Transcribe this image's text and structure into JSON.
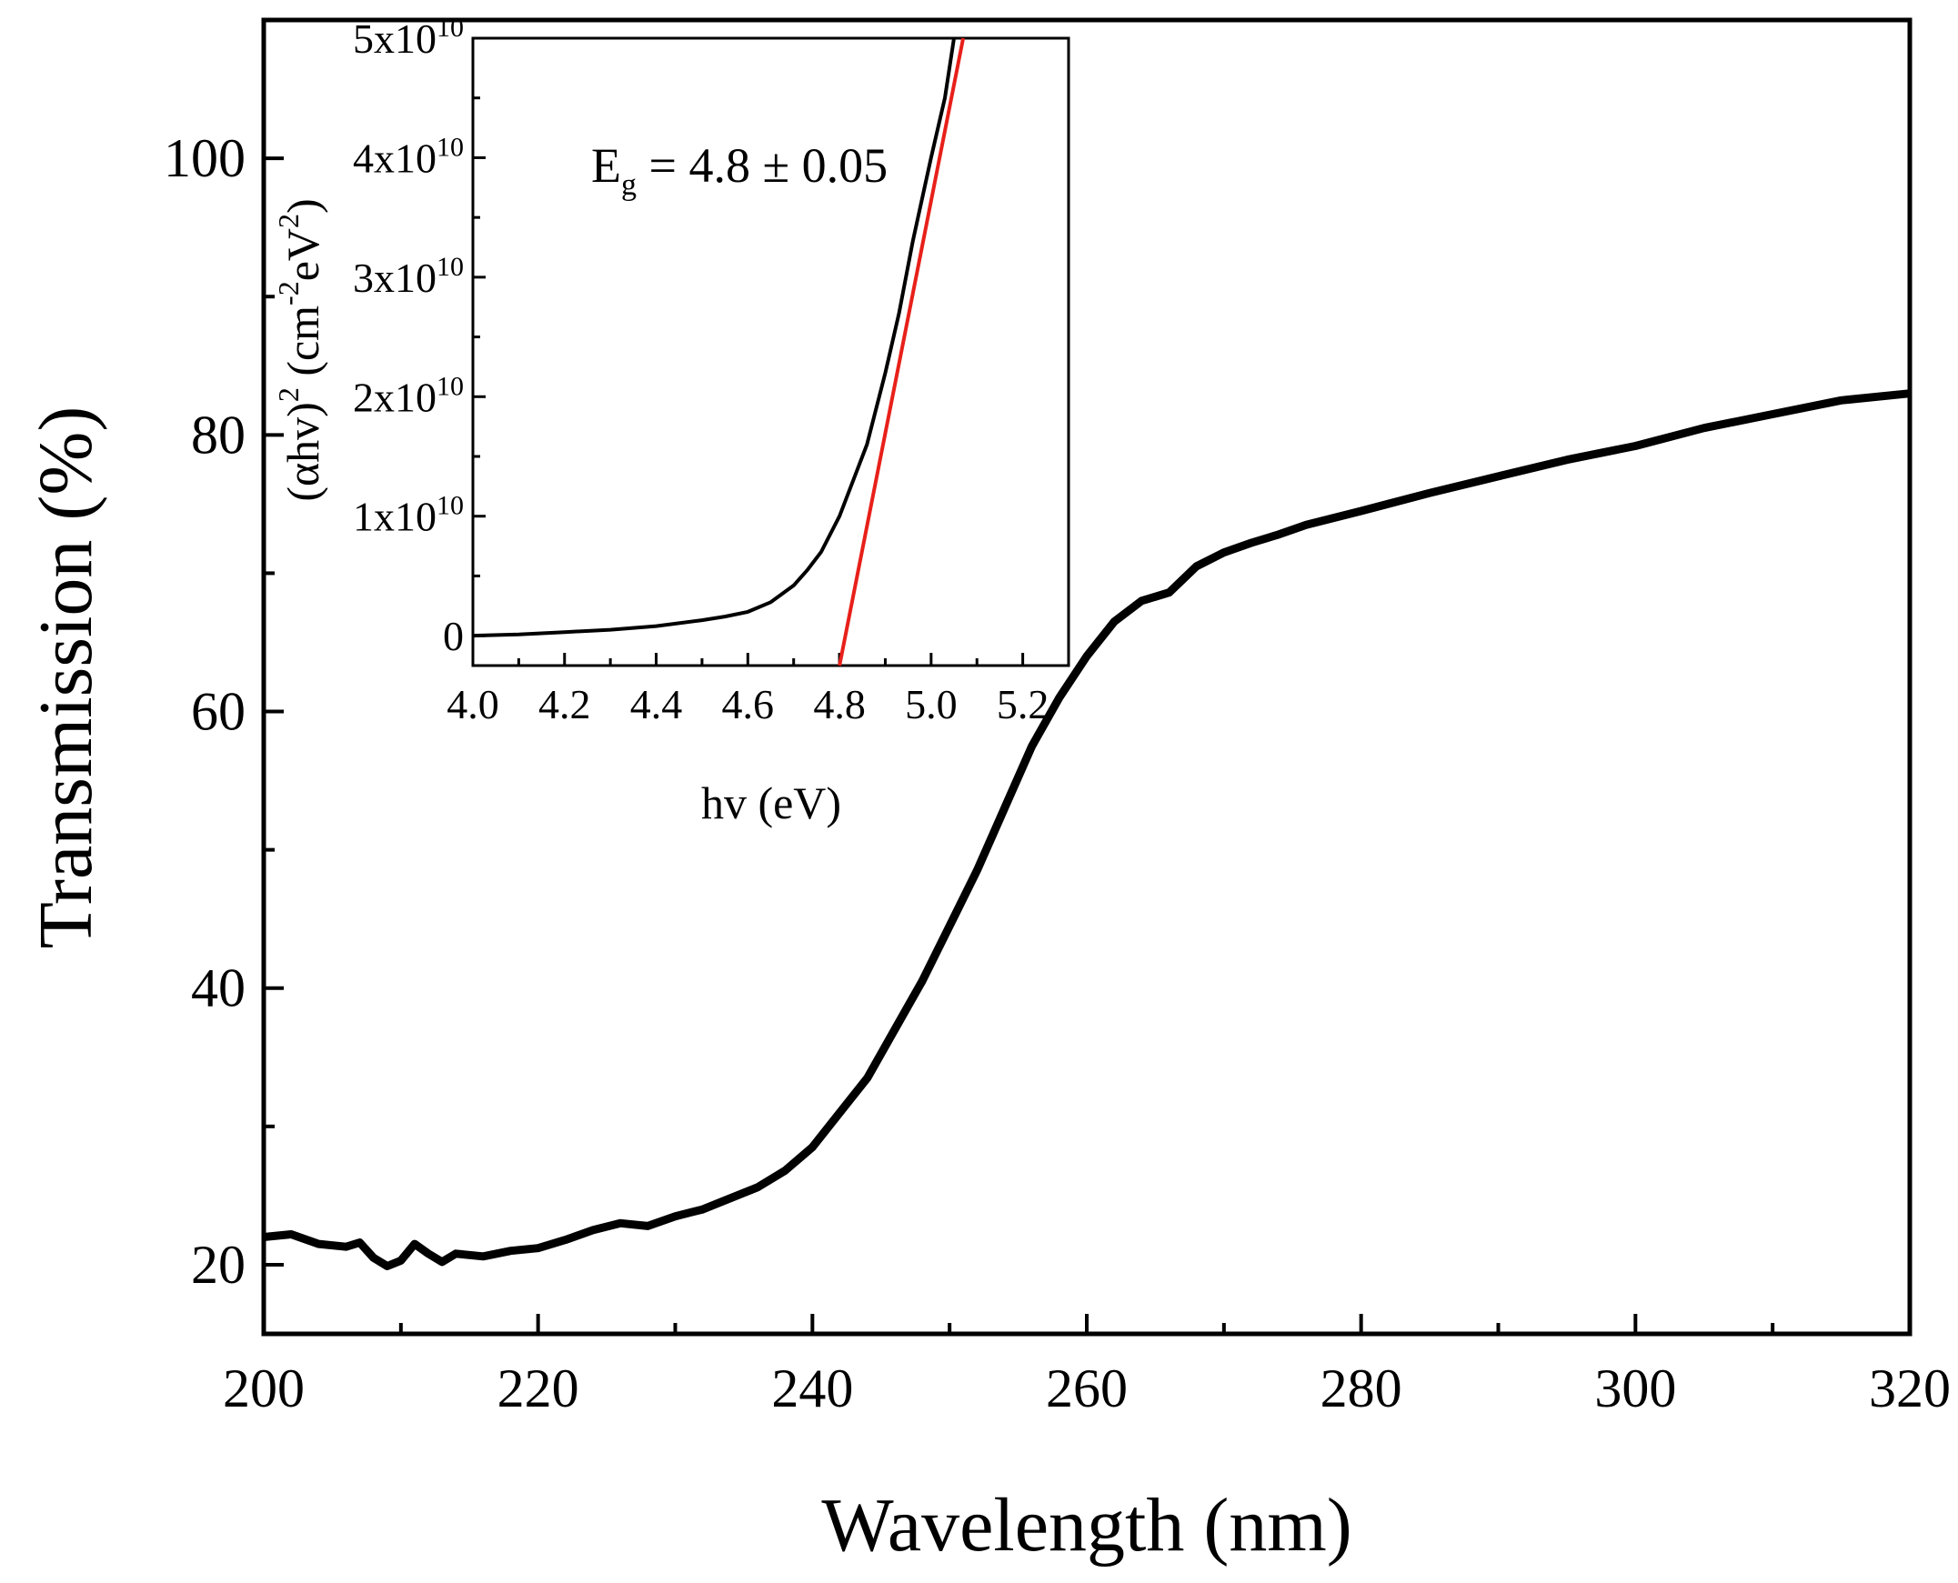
{
  "chart_data": [
    {
      "id": "main",
      "type": "line",
      "title": "",
      "xlabel": "Wavelength (nm)",
      "ylabel": "Transmission (%)",
      "xlim": [
        200,
        320
      ],
      "ylim": [
        15,
        110
      ],
      "x_ticks": [
        200,
        220,
        240,
        260,
        280,
        300,
        320
      ],
      "x_tick_labels": [
        "200",
        "220",
        "240",
        "260",
        "280",
        "300",
        "320"
      ],
      "y_ticks": [
        20,
        40,
        60,
        80,
        100
      ],
      "y_tick_labels": [
        "20",
        "40",
        "60",
        "80",
        "100"
      ],
      "series": [
        {
          "name": "Transmission",
          "color": "#000000",
          "x": [
            200,
            202,
            204,
            206,
            207,
            208,
            209,
            210,
            211,
            212,
            213,
            214,
            216,
            218,
            220,
            222,
            224,
            226,
            228,
            230,
            232,
            234,
            236,
            238,
            240,
            242,
            244,
            246,
            248,
            250,
            252,
            254,
            256,
            258,
            260,
            262,
            264,
            266,
            268,
            270,
            272,
            274,
            276,
            278,
            280,
            285,
            290,
            295,
            300,
            305,
            310,
            315,
            320
          ],
          "y": [
            22,
            22.2,
            21.5,
            21.3,
            21.6,
            20.5,
            19.9,
            20.3,
            21.5,
            20.8,
            20.2,
            20.8,
            20.6,
            21,
            21.2,
            21.8,
            22.5,
            23,
            22.8,
            23.5,
            24,
            24.8,
            25.6,
            26.8,
            28.5,
            31,
            33.5,
            37,
            40.5,
            44.5,
            48.5,
            53,
            57.5,
            61,
            64,
            66.5,
            68,
            68.6,
            70.5,
            71.5,
            72.2,
            72.8,
            73.5,
            74,
            74.5,
            75.8,
            77,
            78.2,
            79.2,
            80.5,
            81.5,
            82.5,
            83
          ]
        }
      ]
    },
    {
      "id": "inset",
      "type": "line",
      "title": "",
      "xlabel": "hv (eV)",
      "ylabel_base": "(αhv)",
      "ylabel_exp": "2",
      "ylabel_units": "(cm",
      "ylabel_units_exp": "-2",
      "ylabel_units_tail": "eV",
      "ylabel_units_tail_exp": "2",
      "ylabel_close": ")",
      "xlim": [
        4.0,
        5.3
      ],
      "ylim": [
        -2500000000.0,
        50000000000.0
      ],
      "x_ticks": [
        4.0,
        4.2,
        4.4,
        4.6,
        4.8,
        5.0,
        5.2
      ],
      "x_tick_labels": [
        "4.0",
        "4.2",
        "4.4",
        "4.6",
        "4.8",
        "5.0",
        "5.2"
      ],
      "y_ticks": [
        0,
        10000000000.0,
        20000000000.0,
        30000000000.0,
        40000000000.0,
        50000000000.0
      ],
      "y_tick_labels": [
        {
          "base": "0",
          "exp": ""
        },
        {
          "base": "1x10",
          "exp": "10"
        },
        {
          "base": "2x10",
          "exp": "10"
        },
        {
          "base": "3x10",
          "exp": "10"
        },
        {
          "base": "4x10",
          "exp": "10"
        },
        {
          "base": "5x10",
          "exp": "10"
        }
      ],
      "series": [
        {
          "name": "(αhv)^2",
          "color": "#000000",
          "x": [
            4.0,
            4.1,
            4.2,
            4.3,
            4.4,
            4.5,
            4.55,
            4.6,
            4.65,
            4.7,
            4.73,
            4.76,
            4.8,
            4.83,
            4.86,
            4.9,
            4.93,
            4.96,
            5.0,
            5.03,
            5.05
          ],
          "y": [
            0,
            100000000.0,
            300000000.0,
            500000000.0,
            800000000.0,
            1300000000.0,
            1600000000.0,
            2000000000.0,
            2800000000.0,
            4200000000.0,
            5500000000.0,
            7000000000.0,
            10000000000.0,
            13000000000.0,
            16000000000.0,
            22000000000.0,
            27000000000.0,
            33000000000.0,
            40000000000.0,
            45000000000.0,
            50000000000.0
          ]
        },
        {
          "name": "linear fit",
          "color": "#e8201a",
          "x": [
            4.8,
            5.07
          ],
          "y": [
            -2500000000.0,
            50000000000.0
          ]
        }
      ],
      "annotation": {
        "label_base": "E",
        "label_sub": "g",
        "label_rest": " = 4.8 ± 0.05"
      }
    }
  ]
}
